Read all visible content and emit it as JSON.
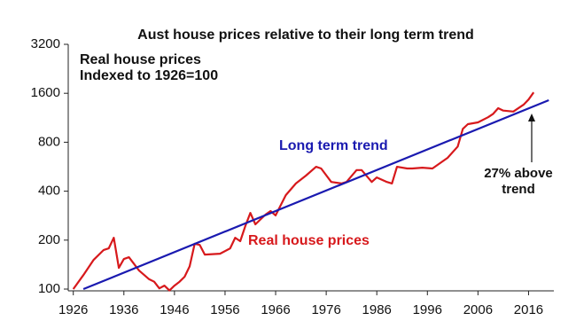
{
  "chart_data": {
    "type": "line",
    "title": "Aust house prices relative to their long term trend",
    "subtitle_lines": [
      "Real house prices",
      "Indexed to 1926=100"
    ],
    "annotations": {
      "trend_label": "Long term trend",
      "series_label": "Real house prices",
      "gap_label_lines": [
        "27% above",
        "trend"
      ]
    },
    "log_scale_y": true,
    "xlim": [
      1925,
      2021
    ],
    "xticks": [
      1926,
      1936,
      1946,
      1956,
      1966,
      1976,
      1986,
      1996,
      2006,
      2016
    ],
    "ylim": [
      100,
      3200
    ],
    "yticks": [
      100,
      200,
      400,
      800,
      1600,
      3200
    ],
    "series": [
      {
        "name": "Real house prices",
        "color": "#d7191c",
        "x": [
          1926,
          1928,
          1930,
          1932,
          1933,
          1934,
          1935,
          1936,
          1937,
          1939,
          1941,
          1942,
          1943,
          1944,
          1945,
          1946,
          1947,
          1948,
          1949,
          1950,
          1951,
          1952,
          1955,
          1957,
          1958,
          1959,
          1960,
          1961,
          1962,
          1964,
          1965,
          1966,
          1968,
          1970,
          1972,
          1974,
          1975,
          1977,
          1979,
          1980,
          1982,
          1983,
          1985,
          1986,
          1988,
          1989,
          1990,
          1992,
          1993,
          1995,
          1997,
          1998,
          2000,
          2002,
          2003,
          2004,
          2006,
          2008,
          2009,
          2010,
          2011,
          2013,
          2015,
          2016,
          2017
        ],
        "values": [
          100,
          122,
          151,
          174,
          178,
          207,
          135,
          153,
          157,
          130,
          115,
          111,
          101,
          105,
          98,
          105,
          111,
          119,
          138,
          190,
          187,
          163,
          165,
          178,
          207,
          197,
          244,
          294,
          250,
          287,
          302,
          284,
          378,
          446,
          499,
          565,
          552,
          456,
          446,
          456,
          539,
          539,
          456,
          486,
          456,
          446,
          565,
          552,
          552,
          558,
          552,
          580,
          641,
          752,
          967,
          1034,
          1060,
          1140,
          1196,
          1296,
          1253,
          1236,
          1360,
          1465,
          1620
        ]
      },
      {
        "name": "Long term trend",
        "color": "#1a1ab0",
        "x": [
          1928,
          2020
        ],
        "values": [
          100,
          1450
        ]
      }
    ]
  }
}
